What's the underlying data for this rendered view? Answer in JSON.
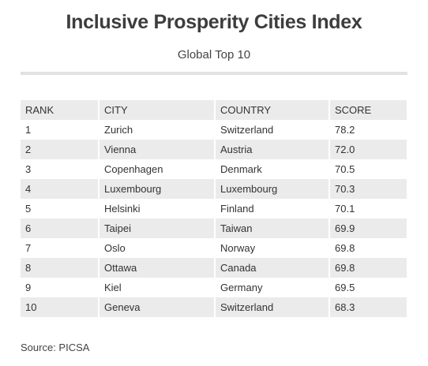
{
  "title": "Inclusive Prosperity Cities Index",
  "subtitle": "Global Top 10",
  "table": {
    "headers": [
      "RANK",
      "CITY",
      "COUNTRY",
      "SCORE"
    ],
    "rows": [
      {
        "rank": "1",
        "city": "Zurich",
        "country": "Switzerland",
        "score": "78.2"
      },
      {
        "rank": "2",
        "city": "Vienna",
        "country": "Austria",
        "score": "72.0"
      },
      {
        "rank": "3",
        "city": "Copenhagen",
        "country": "Denmark",
        "score": "70.5"
      },
      {
        "rank": "4",
        "city": "Luxembourg",
        "country": "Luxembourg",
        "score": "70.3"
      },
      {
        "rank": "5",
        "city": "Helsinki",
        "country": "Finland",
        "score": "70.1"
      },
      {
        "rank": "6",
        "city": "Taipei",
        "country": "Taiwan",
        "score": "69.9"
      },
      {
        "rank": "7",
        "city": "Oslo",
        "country": "Norway",
        "score": "69.8"
      },
      {
        "rank": "8",
        "city": "Ottawa",
        "country": "Canada",
        "score": "69.8"
      },
      {
        "rank": "9",
        "city": "Kiel",
        "country": "Germany",
        "score": "69.5"
      },
      {
        "rank": "10",
        "city": "Geneva",
        "country": "Switzerland",
        "score": "68.3"
      }
    ]
  },
  "source": "Source: PICSA"
}
